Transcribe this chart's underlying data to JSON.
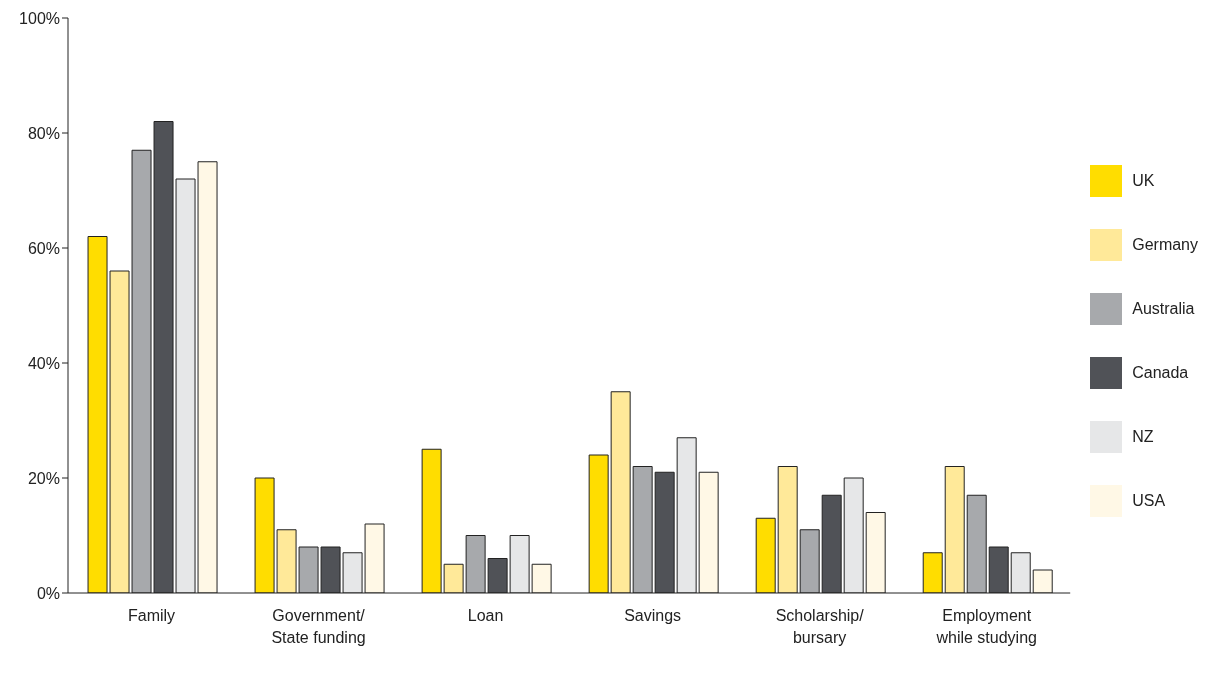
{
  "chart_data": {
    "type": "bar",
    "categories": [
      "Family",
      "Government/\nState funding",
      "Loan",
      "Savings",
      "Scholarship/\nbursary",
      "Employment\nwhile studying"
    ],
    "series": [
      {
        "name": "UK",
        "color": "#ffdd00",
        "values": [
          62,
          20,
          25,
          24,
          13,
          7
        ]
      },
      {
        "name": "Germany",
        "color": "#ffe999",
        "values": [
          56,
          11,
          5,
          35,
          22,
          22
        ]
      },
      {
        "name": "Australia",
        "color": "#a7a9ac",
        "values": [
          77,
          8,
          10,
          22,
          11,
          17
        ]
      },
      {
        "name": "Canada",
        "color": "#505257",
        "values": [
          82,
          8,
          6,
          21,
          17,
          8
        ]
      },
      {
        "name": "NZ",
        "color": "#e6e7e8",
        "values": [
          72,
          7,
          10,
          27,
          20,
          7
        ]
      },
      {
        "name": "USA",
        "color": "#fff8e6",
        "values": [
          75,
          12,
          5,
          21,
          14,
          4
        ]
      }
    ],
    "ylim": [
      0,
      100
    ],
    "yticks": [
      {
        "value": 0,
        "label": "0%"
      },
      {
        "value": 20,
        "label": "20%"
      },
      {
        "value": 40,
        "label": "40%"
      },
      {
        "value": 60,
        "label": "60%"
      },
      {
        "value": 80,
        "label": "80%"
      },
      {
        "value": 100,
        "label": "100%"
      }
    ],
    "grid": false,
    "legend": "right"
  }
}
